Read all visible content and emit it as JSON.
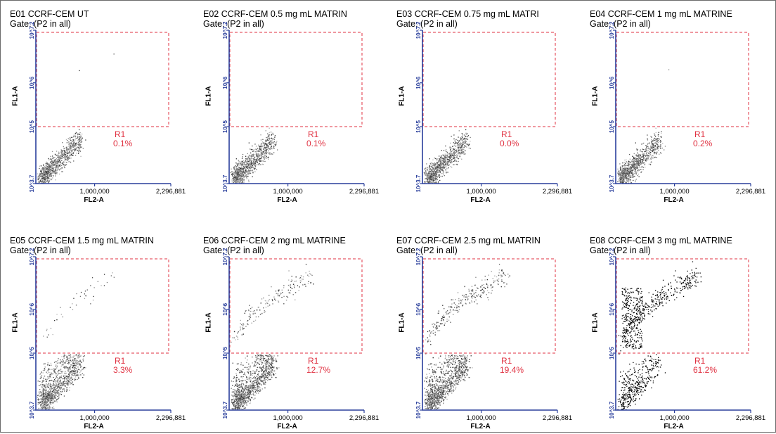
{
  "chart_data": [
    {
      "type": "scatter",
      "title": "E01 CCRF-CEM UT",
      "gate": "Gate: (P2 in all)",
      "xlabel": "FL2-A",
      "ylabel": "FL1-A",
      "x_ticks": [
        "1,000,000",
        "2,296,881"
      ],
      "y_ticks": [
        "10^3.7",
        "10^5",
        "10^6",
        "10^7.2"
      ],
      "xlim": [
        0,
        2296881
      ],
      "ylim_log10": [
        3.7,
        7.2
      ],
      "region": {
        "name": "R1",
        "percent": "0.1%"
      },
      "density": 0.0,
      "n_points": 900,
      "events_in_R1_fraction": 0.001
    },
    {
      "type": "scatter",
      "title": "E02 CCRF-CEM 0.5 mg mL MATRIN",
      "gate": "Gate: (P2 in all)",
      "xlabel": "FL2-A",
      "ylabel": "FL1-A",
      "x_ticks": [
        "1,000,000",
        "2,296,881"
      ],
      "y_ticks": [
        "10^3.7",
        "10^5",
        "10^6",
        "10^7.2"
      ],
      "xlim": [
        0,
        2296881
      ],
      "ylim_log10": [
        3.7,
        7.2
      ],
      "region": {
        "name": "R1",
        "percent": "0.1%"
      },
      "density": 0.0,
      "n_points": 900,
      "events_in_R1_fraction": 0.001
    },
    {
      "type": "scatter",
      "title": "E03 CCRF-CEM 0.75 mg mL MATRI",
      "gate": "Gate: (P2 in all)",
      "xlabel": "FL2-A",
      "ylabel": "FL1-A",
      "x_ticks": [
        "1,000,000",
        "2,296,881"
      ],
      "y_ticks": [
        "10^3.7",
        "10^5",
        "10^6",
        "10^7.2"
      ],
      "xlim": [
        0,
        2296881
      ],
      "ylim_log10": [
        3.7,
        7.2
      ],
      "region": {
        "name": "R1",
        "percent": "0.0%"
      },
      "density": 0.0,
      "n_points": 900,
      "events_in_R1_fraction": 0.0
    },
    {
      "type": "scatter",
      "title": "E04 CCRF-CEM 1 mg mL MATRINE",
      "gate": "Gate: (P2 in all)",
      "xlabel": "FL2-A",
      "ylabel": "FL1-A",
      "x_ticks": [
        "1,000,000",
        "2,296,881"
      ],
      "y_ticks": [
        "10^3.7",
        "10^5",
        "10^6",
        "10^7.2"
      ],
      "xlim": [
        0,
        2296881
      ],
      "ylim_log10": [
        3.7,
        7.2
      ],
      "region": {
        "name": "R1",
        "percent": "0.2%"
      },
      "density": 0.0,
      "n_points": 900,
      "events_in_R1_fraction": 0.002
    },
    {
      "type": "scatter",
      "title": "E05 CCRF-CEM 1.5 mg mL MATRIN",
      "gate": "Gate: (P2 in all)",
      "xlabel": "FL2-A",
      "ylabel": "FL1-A",
      "x_ticks": [
        "1,000,000",
        "2,296,881"
      ],
      "y_ticks": [
        "10^3.7",
        "10^5",
        "10^6",
        "10^7.2"
      ],
      "xlim": [
        0,
        2296881
      ],
      "ylim_log10": [
        3.7,
        7.2
      ],
      "region": {
        "name": "R1",
        "percent": "3.3%"
      },
      "density": 0.0,
      "n_points": 1100,
      "events_in_R1_fraction": 0.033
    },
    {
      "type": "scatter",
      "title": "E06 CCRF-CEM 2 mg mL MATRINE",
      "gate": "Gate: (P2 in all)",
      "xlabel": "FL2-A",
      "ylabel": "FL1-A",
      "x_ticks": [
        "1,000,000",
        "2,296,881"
      ],
      "y_ticks": [
        "10^3.7",
        "10^5",
        "10^6",
        "10^7.2"
      ],
      "xlim": [
        0,
        2296881
      ],
      "ylim_log10": [
        3.7,
        7.2
      ],
      "region": {
        "name": "R1",
        "percent": "12.7%"
      },
      "density": 0.0,
      "n_points": 1800,
      "events_in_R1_fraction": 0.127
    },
    {
      "type": "scatter",
      "title": "E07 CCRF-CEM 2.5 mg mL MATRIN",
      "gate": "Gate: (P2 in all)",
      "xlabel": "FL2-A",
      "ylabel": "FL1-A",
      "x_ticks": [
        "1,000,000",
        "2,296,881"
      ],
      "y_ticks": [
        "10^3.7",
        "10^5",
        "10^6",
        "10^7.2"
      ],
      "xlim": [
        0,
        2296881
      ],
      "ylim_log10": [
        3.7,
        7.2
      ],
      "region": {
        "name": "R1",
        "percent": "19.4%"
      },
      "density": 0.0,
      "n_points": 2200,
      "events_in_R1_fraction": 0.194
    },
    {
      "type": "scatter",
      "title": "E08 CCRF-CEM 3 mg mL MATRINE",
      "gate": "Gate: (P2 in all)",
      "xlabel": "FL2-A",
      "ylabel": "FL1-A",
      "x_ticks": [
        "1,000,000",
        "2,296,881"
      ],
      "y_ticks": [
        "10^3.7",
        "10^5",
        "10^6",
        "10^7.2"
      ],
      "xlim": [
        0,
        2296881
      ],
      "ylim_log10": [
        3.7,
        7.2
      ],
      "region": {
        "name": "R1",
        "percent": "61.2%"
      },
      "density": 0.0,
      "n_points": 1000,
      "events_in_R1_fraction": 0.612
    }
  ],
  "colors": {
    "axis": "#2a3f9c",
    "gate": "#e03040",
    "points": "#000000"
  }
}
